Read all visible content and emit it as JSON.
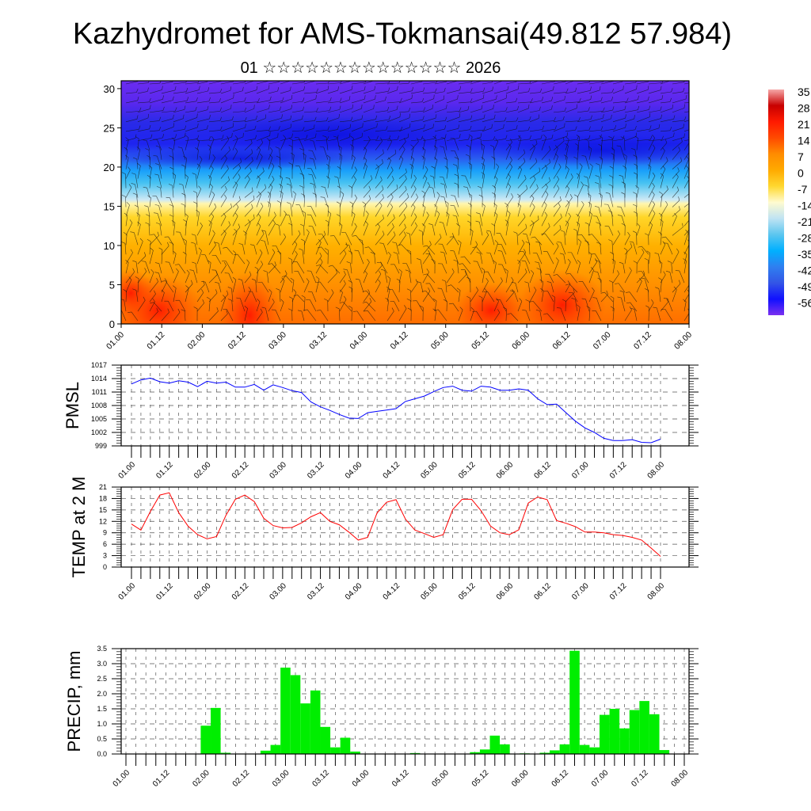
{
  "header": {
    "title": "Kazhydromet for AMS-Tokmansai(49.812 57.984)",
    "subtitle": "01 ☆☆☆☆☆☆☆☆☆☆☆☆☆☆ 2026"
  },
  "time_labels": [
    "01.00",
    "01.12",
    "02.00",
    "02.12",
    "03.00",
    "03.12",
    "04.00",
    "04.12",
    "05.00",
    "05.12",
    "06.00",
    "06.12",
    "07.00",
    "07.12",
    "08.00"
  ],
  "chart_data": [
    {
      "type": "heatmap",
      "name": "temperature-wind-profile",
      "ylabel": "",
      "ylim": [
        0,
        31
      ],
      "yticks": [
        "0",
        "5",
        "10",
        "15",
        "20",
        "25",
        "30"
      ],
      "ytick_values": [
        0,
        5,
        10,
        15,
        20,
        25,
        30
      ],
      "colorbar": {
        "labels": [
          "35",
          "28",
          "21",
          "14",
          "7",
          "0",
          "-7",
          "-14",
          "-21",
          "-28",
          "-35",
          "-42",
          "-49",
          "-56"
        ],
        "colors": [
          "#f6a8a8",
          "#c80000",
          "#ff1a00",
          "#ff4a00",
          "#ff8c00",
          "#ffaa00",
          "#ffd830",
          "#fffbd0",
          "#bfe3f3",
          "#5cc6ef",
          "#00b0ff",
          "#2f7ff0",
          "#3355e6",
          "#1010ff",
          "#7a30f0"
        ]
      },
      "field_colors": {
        "warm_core": "#ff2a00"
      }
    },
    {
      "type": "line",
      "name": "pmsl",
      "ylabel": "PMSL",
      "ylim": [
        999,
        1017
      ],
      "yticks": [
        "999",
        "1002",
        "1005",
        "1008",
        "1011",
        "1014",
        "1017"
      ],
      "ytick_values": [
        999,
        1002,
        1005,
        1008,
        1011,
        1014,
        1017
      ],
      "step_hours": 3,
      "color": "#0000ff",
      "values": [
        1012.8,
        1013.7,
        1014.1,
        1013.3,
        1013.0,
        1013.5,
        1013.2,
        1012.2,
        1013.4,
        1013.0,
        1013.2,
        1012.1,
        1012.1,
        1012.7,
        1011.4,
        1012.6,
        1012.0,
        1011.3,
        1010.9,
        1008.8,
        1007.7,
        1006.9,
        1006.0,
        1005.2,
        1005.1,
        1006.4,
        1006.7,
        1007.0,
        1007.3,
        1008.9,
        1009.5,
        1010.1,
        1011.1,
        1012.0,
        1012.3,
        1011.4,
        1011.2,
        1012.3,
        1012.1,
        1011.4,
        1011.4,
        1011.7,
        1011.4,
        1009.5,
        1008.2,
        1008.3,
        1006.4,
        1004.5,
        1003.0,
        1002.0,
        1000.7,
        1000.2,
        1000.2,
        1000.4,
        999.8,
        999.7,
        1000.5
      ]
    },
    {
      "type": "line",
      "name": "temp-2m",
      "ylabel": "TEMP at 2 M",
      "ylim": [
        0,
        21
      ],
      "yticks": [
        "0",
        "3",
        "6",
        "9",
        "12",
        "15",
        "18",
        "21"
      ],
      "ytick_values": [
        0,
        3,
        6,
        9,
        12,
        15,
        18,
        21
      ],
      "step_hours": 3,
      "color": "#ff0000",
      "values": [
        11.3,
        9.7,
        14.6,
        18.9,
        19.5,
        14.3,
        10.7,
        8.5,
        7.4,
        8.0,
        13.6,
        17.8,
        18.9,
        17.2,
        12.8,
        10.9,
        10.3,
        10.4,
        11.6,
        13.2,
        14.3,
        12.0,
        11.1,
        9.2,
        7.1,
        7.8,
        14.2,
        17.0,
        17.7,
        12.6,
        9.7,
        8.8,
        7.8,
        8.5,
        15.1,
        17.8,
        17.8,
        14.8,
        10.8,
        9.0,
        8.5,
        9.8,
        16.8,
        18.4,
        17.7,
        12.2,
        11.5,
        10.6,
        9.2,
        9.2,
        9.0,
        8.5,
        8.3,
        7.8,
        7.1,
        5.0,
        2.8
      ]
    },
    {
      "type": "bar",
      "name": "precip",
      "ylabel": "PRECIP, mm",
      "ylim": [
        0,
        3.5
      ],
      "yticks": [
        "0.0",
        "0.5",
        "1.0",
        "1.5",
        "2.0",
        "2.5",
        "3.0",
        "3.5"
      ],
      "ytick_values": [
        0,
        0.5,
        1,
        1.5,
        2,
        2.5,
        3,
        3.5
      ],
      "step_hours": 3,
      "color": "#00ee00",
      "values": [
        0,
        0,
        0,
        0,
        0,
        0,
        0,
        0,
        0.94,
        1.53,
        0.04,
        0,
        0,
        0,
        0.11,
        0.3,
        2.87,
        2.62,
        1.68,
        2.11,
        0.9,
        0.22,
        0.54,
        0.08,
        0,
        0,
        0,
        0,
        0,
        0.03,
        0,
        0,
        0,
        0,
        0,
        0.06,
        0.15,
        0.61,
        0.32,
        0,
        0.02,
        0,
        0.04,
        0.12,
        0.32,
        3.43,
        0.3,
        0.22,
        1.3,
        1.5,
        0.85,
        1.46,
        1.76,
        1.32,
        0.13,
        0,
        0
      ]
    }
  ]
}
